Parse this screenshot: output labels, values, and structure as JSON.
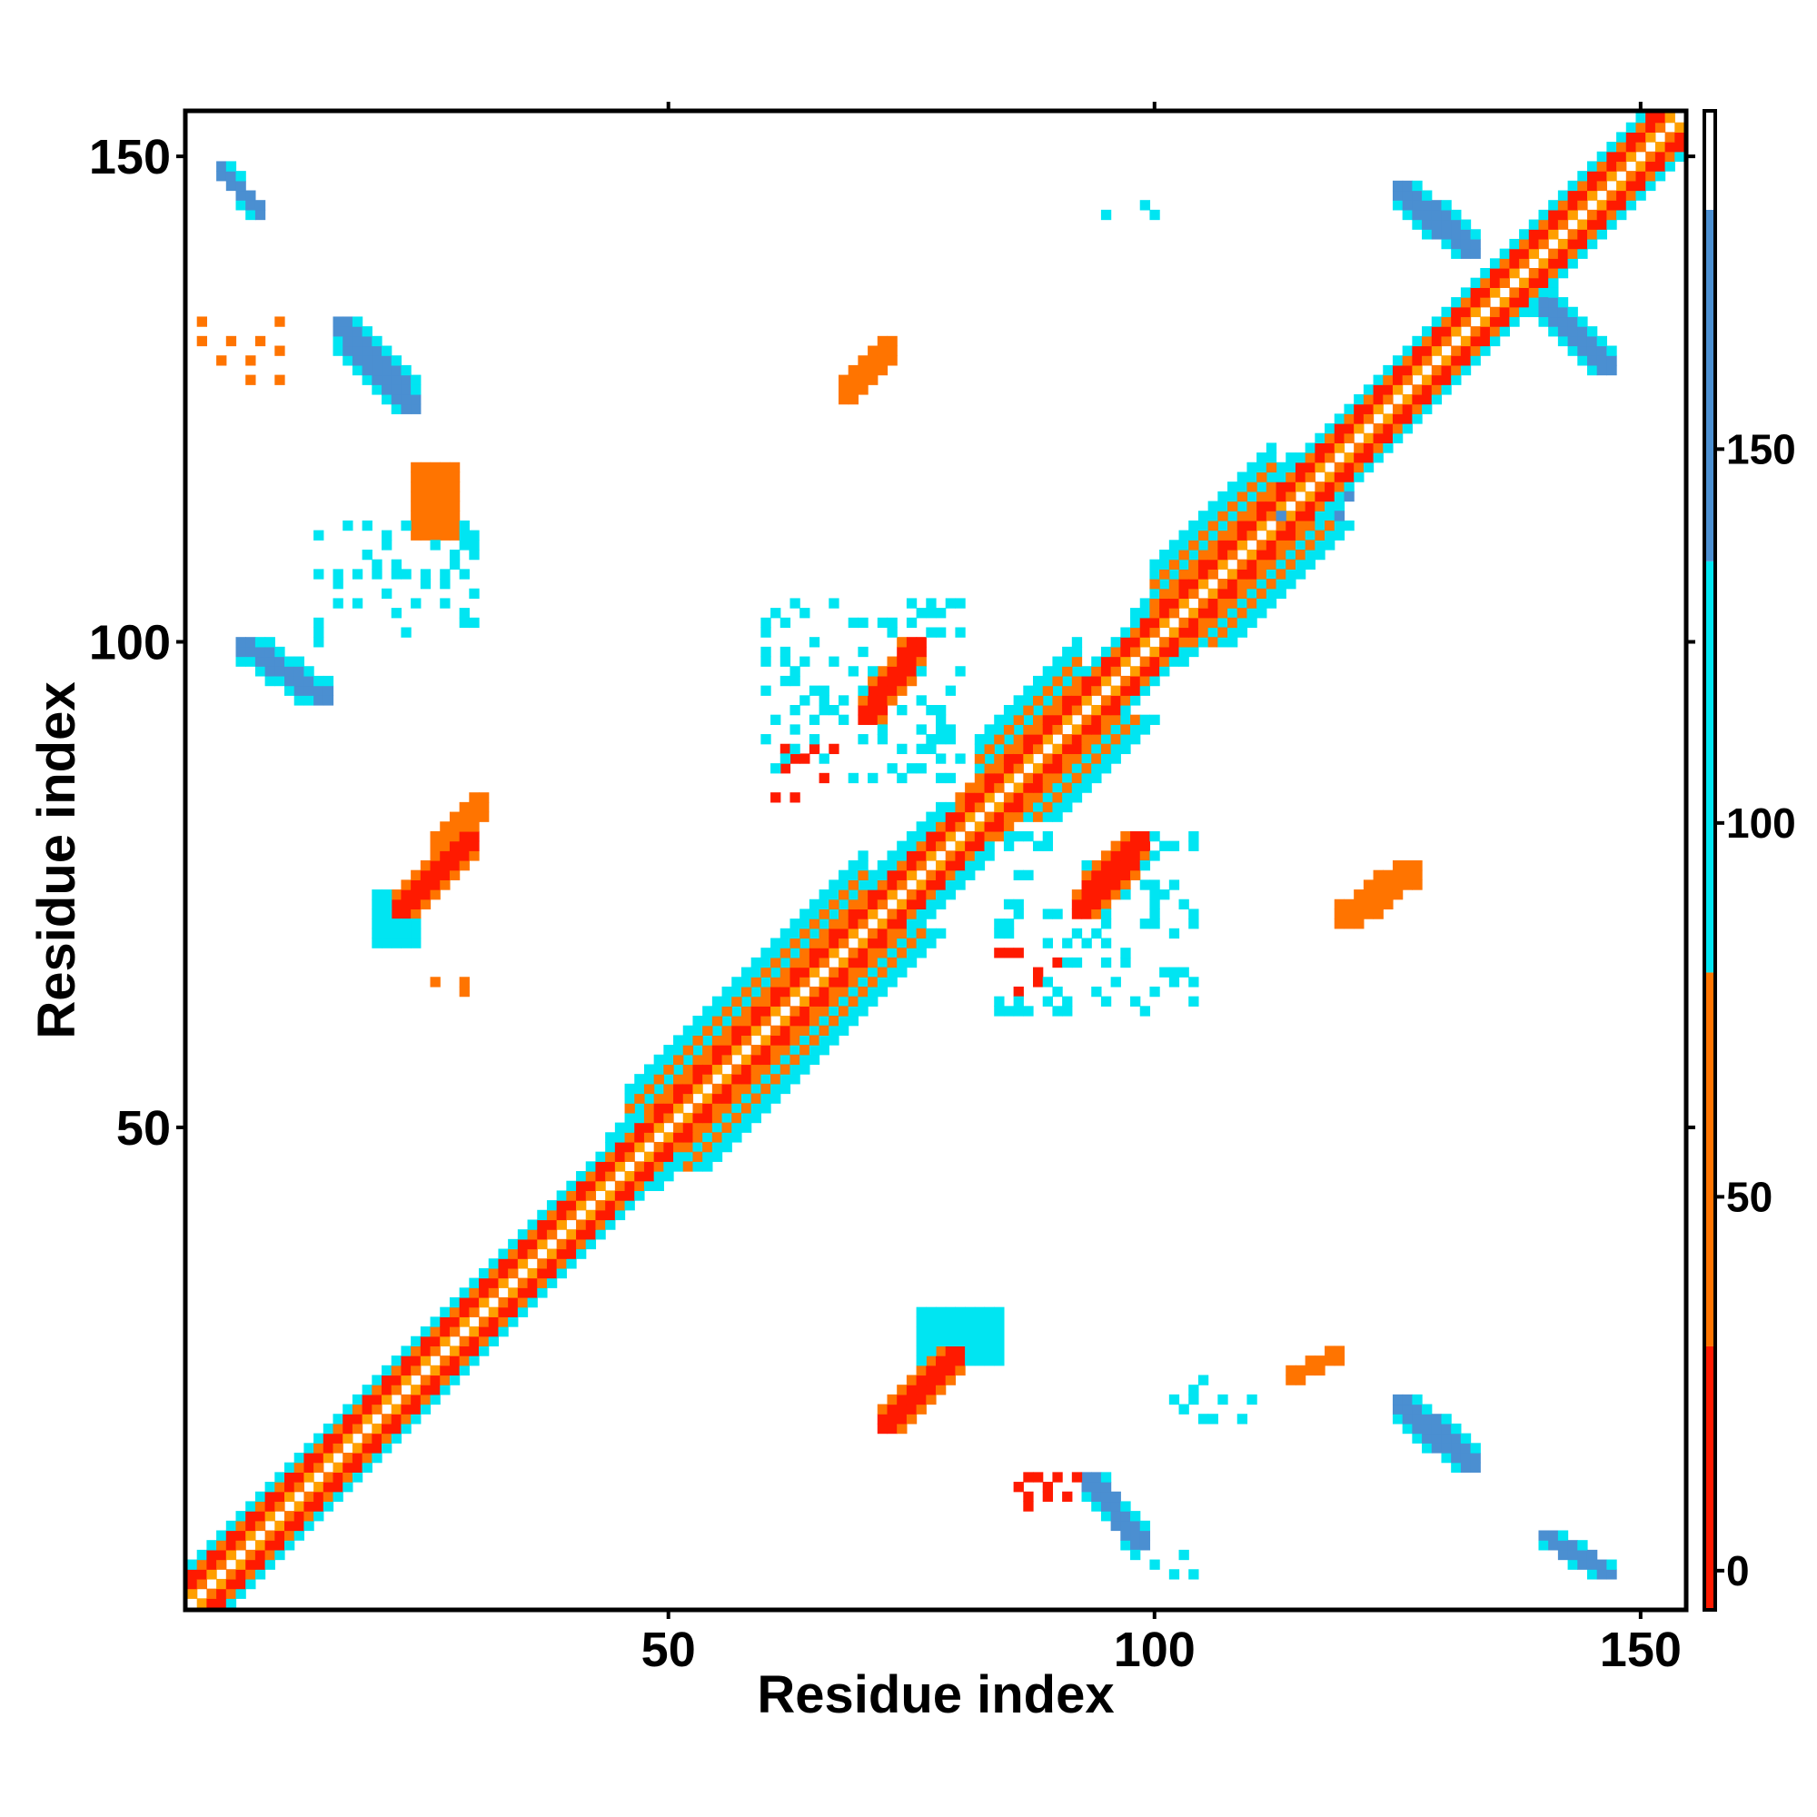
{
  "chart_data": {
    "type": "heatmap",
    "title": "",
    "xlabel": "Residue index",
    "ylabel": "Residue index",
    "xlim": [
      1,
      154
    ],
    "ylim": [
      1,
      154
    ],
    "x_ticks": [
      50,
      100,
      150
    ],
    "y_ticks": [
      50,
      100,
      150
    ],
    "colorbar": {
      "ticks": [
        0,
        50,
        100,
        150
      ],
      "range": [
        -5,
        195
      ],
      "bands": [
        {
          "from": -5,
          "to": 30,
          "color": "#ff1a00"
        },
        {
          "from": 30,
          "to": 80,
          "color": "#ff7400"
        },
        {
          "from": 80,
          "to": 135,
          "color": "#00e5f2"
        },
        {
          "from": 135,
          "to": 182,
          "color": "#4b8fd1"
        },
        {
          "from": 182,
          "to": 195,
          "color": "#ffffff"
        }
      ]
    },
    "colors": {
      "red": "#ff1a00",
      "orange": "#ff7400",
      "amber": "#ff9f00",
      "cyan": "#00e5f2",
      "blue": "#4b8fd1"
    },
    "diagonal_band": {
      "from": 1,
      "to": 154
    },
    "patches": [
      {
        "x": [
          4,
          8
        ],
        "y": [
          144,
          149
        ],
        "color": "blue",
        "shape": "antidiag"
      },
      {
        "x": [
          16,
          24
        ],
        "y": [
          124,
          133
        ],
        "color": "blue",
        "shape": "antidiag"
      },
      {
        "x": [
          6,
          15
        ],
        "y": [
          94,
          100
        ],
        "color": "blue",
        "shape": "antidiag"
      },
      {
        "x": [
          22,
          30
        ],
        "y": [
          72,
          80
        ],
        "color": "red",
        "shape": "diag"
      },
      {
        "x": [
          26,
          31
        ],
        "y": [
          78,
          84
        ],
        "color": "orange",
        "shape": "diag"
      },
      {
        "x": [
          20,
          24
        ],
        "y": [
          69,
          74
        ],
        "color": "cyan",
        "shape": "block"
      },
      {
        "x": [
          24,
          28
        ],
        "y": [
          111,
          118
        ],
        "color": "orange",
        "shape": "block"
      },
      {
        "x": [
          70,
          76
        ],
        "y": [
          92,
          100
        ],
        "color": "red",
        "shape": "diag"
      },
      {
        "x": [
          92,
          99
        ],
        "y": [
          72,
          80
        ],
        "color": "red",
        "shape": "diag"
      },
      {
        "x": [
          72,
          80
        ],
        "y": [
          19,
          27
        ],
        "color": "red",
        "shape": "diag"
      },
      {
        "x": [
          76,
          84
        ],
        "y": [
          26,
          31
        ],
        "color": "cyan",
        "shape": "block"
      },
      {
        "x": [
          125,
          133
        ],
        "y": [
          140,
          147
        ],
        "color": "blue",
        "shape": "antidiag"
      },
      {
        "x": [
          139,
          147
        ],
        "y": [
          128,
          136
        ],
        "color": "blue",
        "shape": "antidiag"
      },
      {
        "x": [
          125,
          133
        ],
        "y": [
          15,
          22
        ],
        "color": "blue",
        "shape": "antidiag"
      },
      {
        "x": [
          140,
          147
        ],
        "y": [
          4,
          8
        ],
        "color": "blue",
        "shape": "antidiag"
      },
      {
        "x": [
          93,
          99
        ],
        "y": [
          7,
          14
        ],
        "color": "blue",
        "shape": "antidiag"
      },
      {
        "x": [
          68,
          73
        ],
        "y": [
          125,
          131
        ],
        "color": "orange",
        "shape": "diag"
      },
      {
        "x": [
          114,
          119
        ],
        "y": [
          24,
          27
        ],
        "color": "orange",
        "shape": "diag"
      },
      {
        "x": [
          119,
          127
        ],
        "y": [
          71,
          77
        ],
        "color": "orange",
        "shape": "diag"
      },
      {
        "x": [
          84,
          90
        ],
        "y": [
          62,
          68
        ],
        "color": "red",
        "shape": "scatter"
      },
      {
        "x": [
          61,
          67
        ],
        "y": [
          84,
          90
        ],
        "color": "red",
        "shape": "scatter"
      },
      {
        "x": [
          2,
          10
        ],
        "y": [
          127,
          133
        ],
        "color": "orange",
        "shape": "scatter"
      },
      {
        "x": [
          14,
          30
        ],
        "y": [
          100,
          112
        ],
        "color": "cyan",
        "shape": "scatter"
      },
      {
        "x": [
          102,
          112
        ],
        "y": [
          20,
          24
        ],
        "color": "cyan",
        "shape": "scatter"
      },
      {
        "x": [
          60,
          80
        ],
        "y": [
          86,
          104
        ],
        "color": "cyan",
        "shape": "scatter"
      },
      {
        "x": [
          84,
          104
        ],
        "y": [
          62,
          80
        ],
        "color": "cyan",
        "shape": "scatter"
      },
      {
        "x": [
          108,
          120
        ],
        "y": [
          112,
          116
        ],
        "color": "blue",
        "shape": "scatter"
      },
      {
        "x": [
          94,
          100
        ],
        "y": [
          144,
          146
        ],
        "color": "cyan",
        "shape": "scatter"
      },
      {
        "x": [
          98,
          104
        ],
        "y": [
          4,
          6
        ],
        "color": "cyan",
        "shape": "scatter"
      },
      {
        "x": [
          86,
          92
        ],
        "y": [
          11,
          14
        ],
        "color": "red",
        "shape": "scatter"
      },
      {
        "x": [
          26,
          32
        ],
        "y": [
          62,
          66
        ],
        "color": "orange",
        "shape": "scatter"
      }
    ]
  }
}
